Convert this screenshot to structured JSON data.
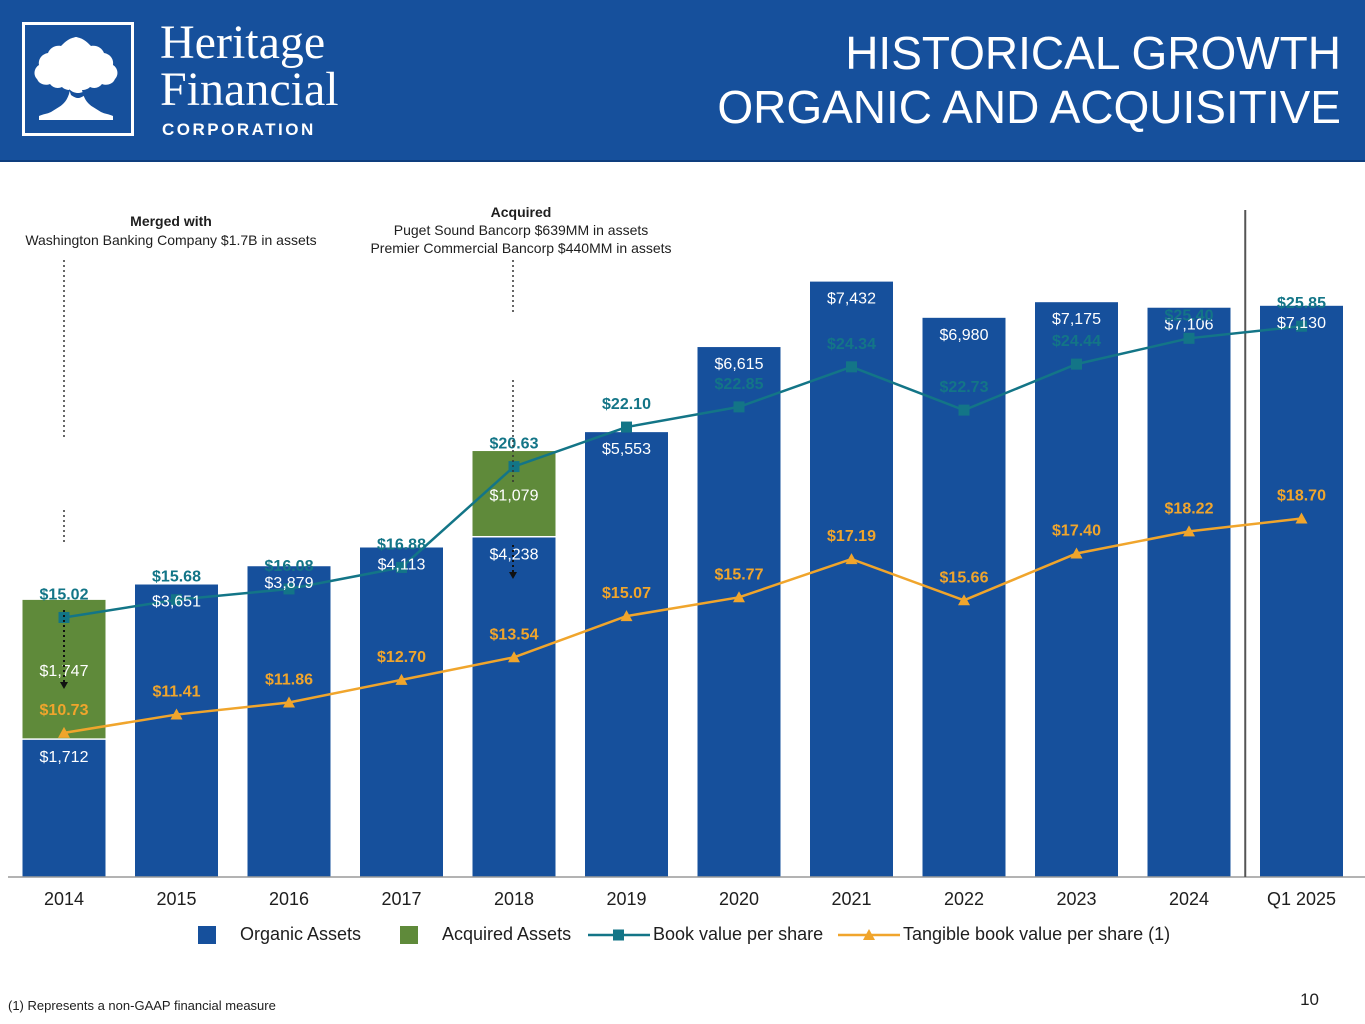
{
  "logo": {
    "line1": "Heritage",
    "line2": "Financial",
    "line3": "CORPORATION",
    "icon": "oak-tree-icon"
  },
  "slide": {
    "title_line1": "HISTORICAL GROWTH",
    "title_line2": "ORGANIC AND ACQUISITIVE",
    "footnote": "(1) Represents a non-GAAP financial measure",
    "page_number": "10"
  },
  "annotations": {
    "merge": {
      "heading": "Merged with",
      "line1": "Washington Banking Company $1.7B in assets"
    },
    "acquire": {
      "heading": "Acquired",
      "line1": "Puget Sound Bancorp $639MM in assets",
      "line2": "Premier Commercial Bancorp $440MM in assets"
    }
  },
  "chart_data": {
    "type": "bar",
    "categories": [
      "2014",
      "2015",
      "2016",
      "2017",
      "2018",
      "2019",
      "2020",
      "2021",
      "2022",
      "2023",
      "2024",
      "Q1 2025"
    ],
    "series": [
      {
        "name": "Organic Assets",
        "kind": "bar-stacked",
        "color": "#16509c",
        "values": [
          1712,
          3651,
          3879,
          4113,
          4238,
          5553,
          6615,
          7432,
          6980,
          7175,
          7106,
          7130
        ],
        "labels": [
          "$1,712",
          "$3,651",
          "$3,879",
          "$4,113",
          "$4,238",
          "$5,553",
          "$6,615",
          "$7,432",
          "$6,980",
          "$7,175",
          "$7,106",
          "$7,130"
        ]
      },
      {
        "name": "Acquired Assets",
        "kind": "bar-stacked",
        "color": "#5f8a3a",
        "values": [
          1747,
          0,
          0,
          0,
          1079,
          0,
          0,
          0,
          0,
          0,
          0,
          0
        ],
        "labels": [
          "$1,747",
          "",
          "",
          "",
          "$1,079",
          "",
          "",
          "",
          "",
          "",
          "",
          ""
        ]
      },
      {
        "name": "Book value per share",
        "kind": "line",
        "marker": "square",
        "color": "#137587",
        "values": [
          15.02,
          15.68,
          16.08,
          16.88,
          20.63,
          22.1,
          22.85,
          24.34,
          22.73,
          24.44,
          25.4,
          25.85
        ],
        "labels": [
          "$15.02",
          "$15.68",
          "$16.08",
          "$16.88",
          "$20.63",
          "$22.10",
          "$22.85",
          "$24.34",
          "$22.73",
          "$24.44",
          "$25.40",
          "$25.85"
        ]
      },
      {
        "name": "Tangible book value per share (1)",
        "kind": "line",
        "marker": "triangle",
        "color": "#f0a52c",
        "values": [
          10.73,
          11.41,
          11.86,
          12.7,
          13.54,
          15.07,
          15.77,
          17.19,
          15.66,
          17.4,
          18.22,
          18.7
        ],
        "labels": [
          "$10.73",
          "$11.41",
          "$11.86",
          "$12.70",
          "$13.54",
          "$15.07",
          "$15.77",
          "$17.19",
          "$15.66",
          "$17.40",
          "$18.22",
          "$18.70"
        ]
      }
    ],
    "bar_ylim": [
      0,
      8950
    ],
    "line_ylim": [
      5.37,
      32.03
    ],
    "separator_after": "2024",
    "grid": false,
    "legend": "bottom"
  }
}
